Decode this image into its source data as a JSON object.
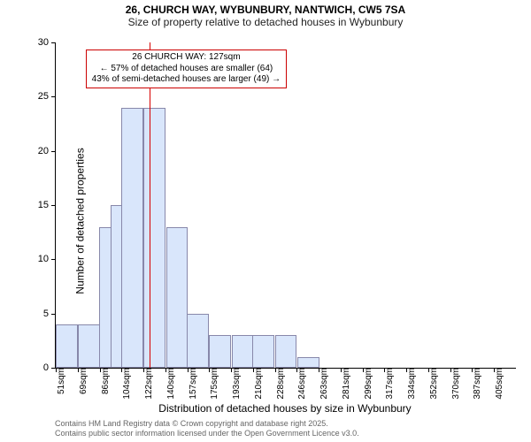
{
  "titles": {
    "line1": "26, CHURCH WAY, WYBUNBURY, NANTWICH, CW5 7SA",
    "line2": "Size of property relative to detached houses in Wybunbury"
  },
  "chart": {
    "type": "histogram",
    "y_label": "Number of detached properties",
    "x_label": "Distribution of detached houses by size in Wybunbury",
    "ylim": [
      0,
      30
    ],
    "y_tick_step": 5,
    "x_categories": [
      "51sqm",
      "69sqm",
      "86sqm",
      "104sqm",
      "122sqm",
      "140sqm",
      "157sqm",
      "175sqm",
      "193sqm",
      "210sqm",
      "228sqm",
      "246sqm",
      "263sqm",
      "281sqm",
      "299sqm",
      "317sqm",
      "334sqm",
      "352sqm",
      "370sqm",
      "387sqm",
      "405sqm"
    ],
    "bar_step_sqm": 17.7,
    "x_origin_sqm": 51,
    "bars": [
      {
        "start_sqm": 51,
        "count": 4
      },
      {
        "start_sqm": 69,
        "count": 4
      },
      {
        "start_sqm": 86,
        "count": 13
      },
      {
        "start_sqm": 95,
        "count": 15
      },
      {
        "start_sqm": 104,
        "count": 24
      },
      {
        "start_sqm": 122,
        "count": 24
      },
      {
        "start_sqm": 140,
        "count": 13
      },
      {
        "start_sqm": 157,
        "count": 5
      },
      {
        "start_sqm": 175,
        "count": 3
      },
      {
        "start_sqm": 193,
        "count": 3
      },
      {
        "start_sqm": 210,
        "count": 3
      },
      {
        "start_sqm": 228,
        "count": 3
      },
      {
        "start_sqm": 246,
        "count": 1
      }
    ],
    "bar_fill": "#d9e6fb",
    "bar_stroke": "#8888aa",
    "marker": {
      "sqm": 127,
      "color": "#d80000"
    },
    "annotation": {
      "line1": "26 CHURCH WAY: 127sqm",
      "line2": "← 57% of detached houses are smaller (64)",
      "line3": "43% of semi-detached houses are larger (49) →",
      "border": "#cc0000",
      "fontsize": 10
    },
    "background_color": "#ffffff",
    "axis_color": "#000000",
    "tick_fontsize": 11,
    "label_fontsize": 12,
    "x_range_sqm": 371.7
  },
  "footnote": {
    "line1": "Contains HM Land Registry data © Crown copyright and database right 2025.",
    "line2": "Contains public sector information licensed under the Open Government Licence v3.0."
  }
}
